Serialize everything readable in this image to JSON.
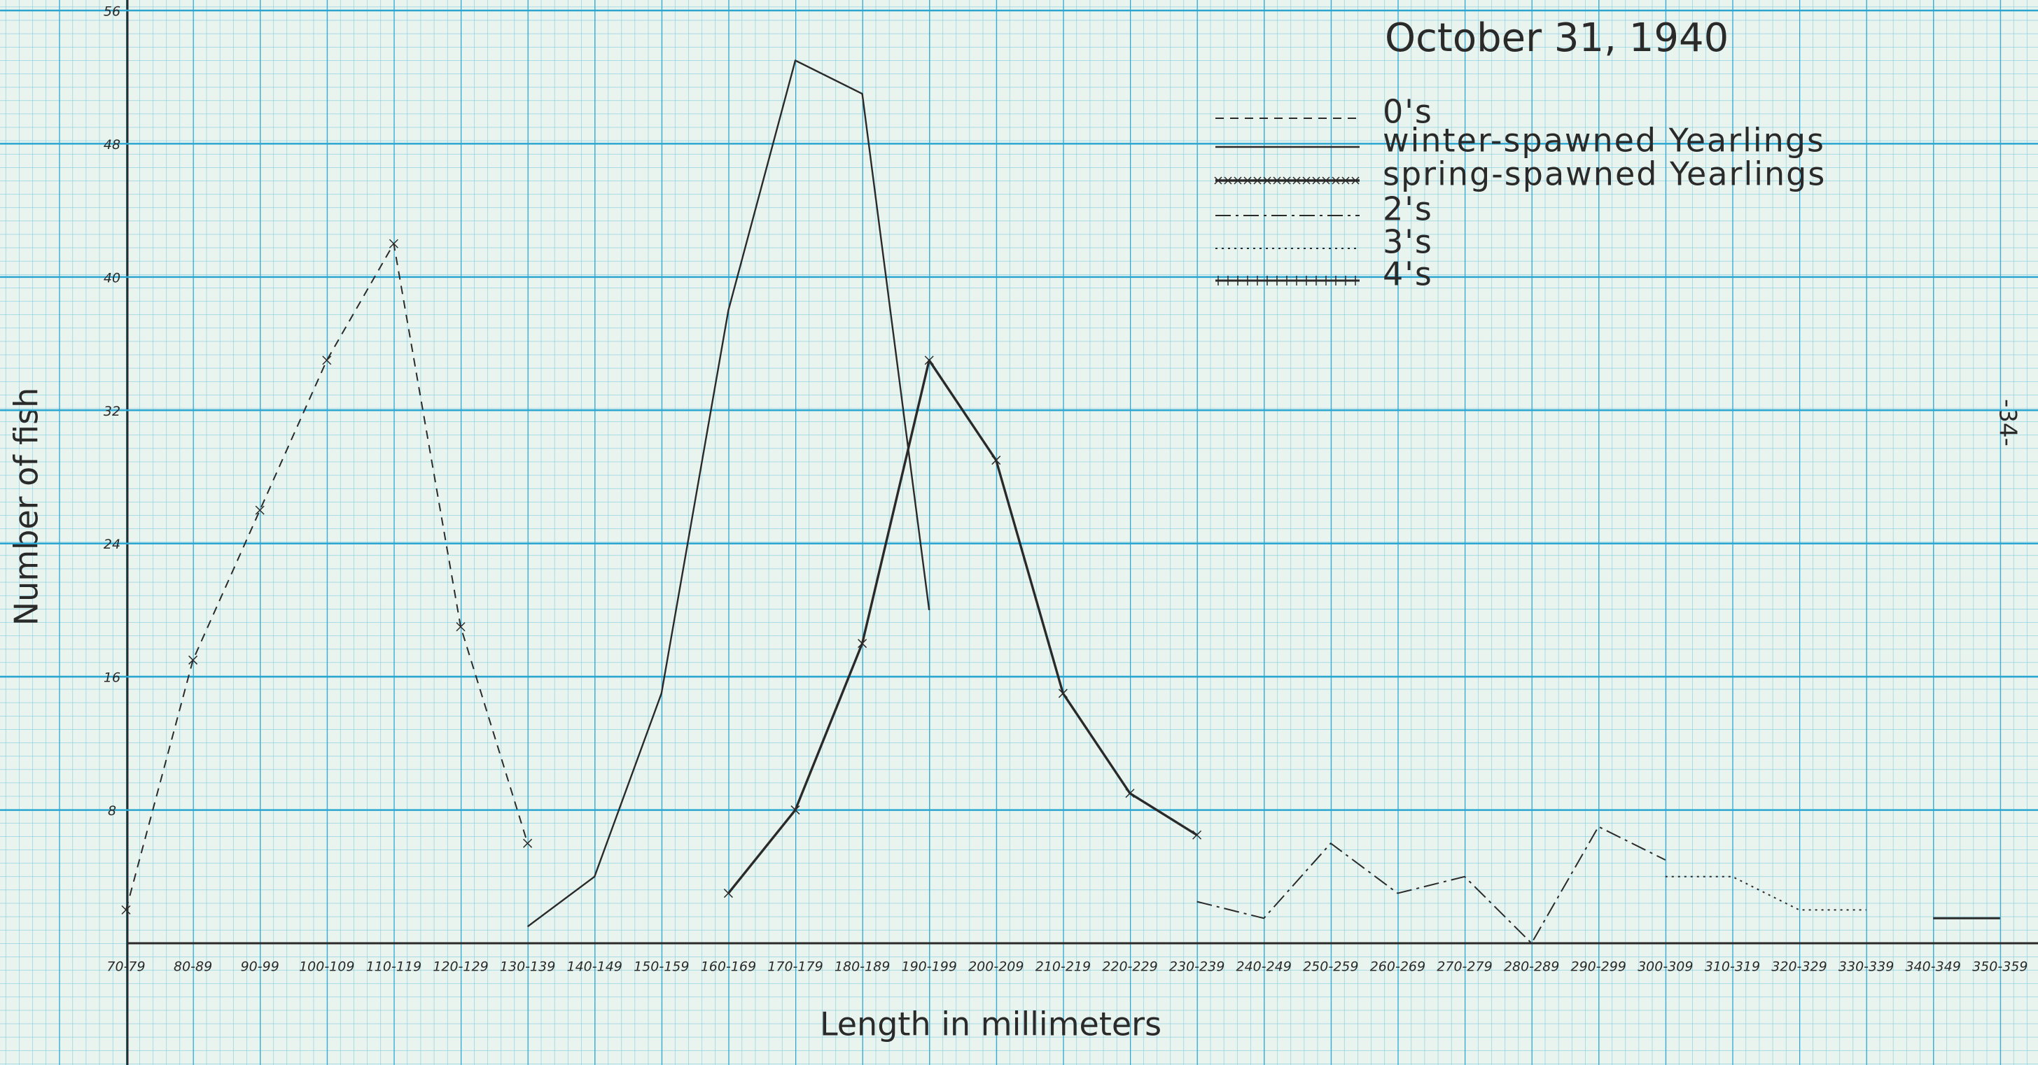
{
  "chart_data": {
    "type": "line",
    "title": "October 31, 1940",
    "x_label": "Length in millimeters",
    "y_label": "Number of fish",
    "annotation": "-34-",
    "categories": [
      "70-79",
      "80-89",
      "90-99",
      "100-109",
      "110-119",
      "120-129",
      "130-139",
      "140-149",
      "150-159",
      "160-169",
      "170-179",
      "180-189",
      "190-199",
      "200-209",
      "210-219",
      "220-229",
      "230-239",
      "240-249",
      "250-259",
      "260-269",
      "270-279",
      "280-289",
      "290-299",
      "300-309",
      "310-319",
      "320-329",
      "330-339",
      "340-349",
      "350-359"
    ],
    "series": [
      {
        "name": "0's",
        "color": "#2a2a2a",
        "dash": "dashed",
        "values": [
          2,
          17,
          26,
          35,
          42,
          19,
          6,
          null,
          null,
          null,
          null,
          null,
          null,
          null,
          null,
          null,
          null,
          null,
          null,
          null,
          null,
          null,
          null,
          null,
          null,
          null,
          null,
          null,
          null
        ]
      },
      {
        "name": "winter-spawned Yearlings",
        "color": "#2a2a2a",
        "dash": "solid",
        "values": [
          null,
          null,
          null,
          null,
          null,
          null,
          1,
          4,
          15,
          38,
          53,
          51,
          20,
          null,
          null,
          null,
          null,
          null,
          null,
          null,
          null,
          null,
          null,
          null,
          null,
          null,
          null,
          null,
          null
        ]
      },
      {
        "name": "spring-spawned Yearlings",
        "color": "#2a2a2a",
        "dash": "crossed",
        "values": [
          null,
          null,
          null,
          null,
          null,
          null,
          null,
          null,
          null,
          3,
          8,
          18,
          35,
          29,
          15,
          9,
          6.5,
          null,
          null,
          null,
          null,
          null,
          null,
          null,
          null,
          null,
          null,
          null,
          null
        ]
      },
      {
        "name": "2's",
        "color": "#2a2a2a",
        "dash": "dashdot",
        "values": [
          null,
          null,
          null,
          null,
          null,
          null,
          null,
          null,
          null,
          null,
          null,
          null,
          null,
          null,
          null,
          null,
          2.5,
          1.5,
          6,
          3,
          4,
          0,
          7,
          5,
          null,
          null,
          null,
          null,
          null
        ]
      },
      {
        "name": "3's",
        "color": "#2a2a2a",
        "dash": "dotted",
        "values": [
          null,
          null,
          null,
          null,
          null,
          null,
          null,
          null,
          null,
          null,
          null,
          null,
          null,
          null,
          null,
          null,
          null,
          null,
          null,
          null,
          null,
          null,
          null,
          4,
          4,
          2,
          2,
          null,
          null
        ]
      },
      {
        "name": "4's",
        "color": "#2a2a2a",
        "dash": "plus",
        "values": [
          null,
          null,
          null,
          null,
          null,
          null,
          null,
          null,
          null,
          null,
          null,
          null,
          null,
          null,
          null,
          null,
          null,
          null,
          null,
          null,
          null,
          null,
          null,
          null,
          null,
          null,
          null,
          1.5,
          1.5
        ]
      }
    ],
    "ylim": [
      0,
      56
    ],
    "yticks": [
      8,
      16,
      24,
      32,
      40,
      48,
      56
    ],
    "grid": true
  }
}
